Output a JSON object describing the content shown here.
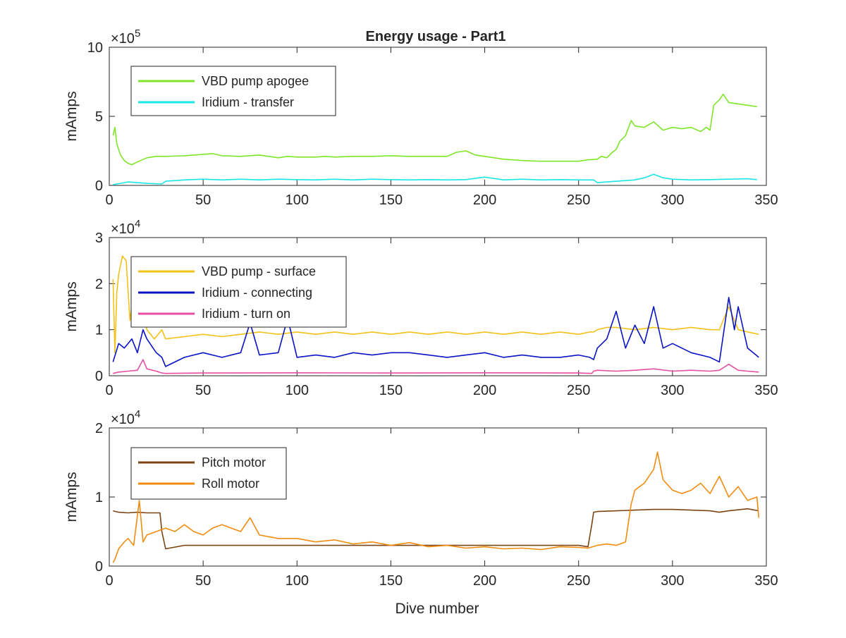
{
  "chart_data": {
    "type": "line",
    "title": "Energy usage - Part1",
    "xlabel": "Dive number",
    "xlim": [
      0,
      350
    ],
    "xticks": [
      0,
      50,
      100,
      150,
      200,
      250,
      300,
      350
    ],
    "panels": [
      {
        "ylabel": "mAmps",
        "ylim": [
          0,
          1000000
        ],
        "yticks": [
          0,
          5,
          10
        ],
        "yexponent": "×10",
        "yexponent_power": "5",
        "legend_placement": "top-left",
        "series": [
          {
            "name": "VBD pump apogee",
            "color": "#7fe52a",
            "x": [
              2,
              3,
              4,
              6,
              8,
              10,
              12,
              15,
              20,
              25,
              30,
              40,
              50,
              55,
              60,
              70,
              80,
              90,
              95,
              100,
              110,
              115,
              120,
              130,
              140,
              150,
              160,
              170,
              180,
              185,
              190,
              195,
              200,
              210,
              220,
              230,
              240,
              250,
              255,
              260,
              262,
              265,
              268,
              270,
              272,
              275,
              278,
              280,
              285,
              290,
              295,
              300,
              305,
              310,
              315,
              318,
              320,
              322,
              325,
              327,
              330,
              335,
              340,
              345
            ],
            "y": [
              360000,
              420000,
              300000,
              220000,
              180000,
              160000,
              150000,
              170000,
              200000,
              210000,
              210000,
              215000,
              225000,
              230000,
              215000,
              210000,
              220000,
              200000,
              210000,
              205000,
              205000,
              210000,
              205000,
              210000,
              210000,
              215000,
              210000,
              210000,
              210000,
              240000,
              250000,
              220000,
              210000,
              190000,
              180000,
              175000,
              175000,
              175000,
              185000,
              190000,
              210000,
              200000,
              240000,
              260000,
              320000,
              360000,
              470000,
              430000,
              420000,
              460000,
              400000,
              420000,
              410000,
              420000,
              390000,
              420000,
              400000,
              580000,
              620000,
              660000,
              600000,
              590000,
              580000,
              570000
            ]
          },
          {
            "name": "Iridium - transfer",
            "color": "#19e6e6",
            "x": [
              2,
              10,
              20,
              28,
              30,
              40,
              50,
              60,
              70,
              80,
              90,
              100,
              110,
              120,
              130,
              140,
              150,
              160,
              170,
              180,
              190,
              200,
              210,
              220,
              230,
              240,
              250,
              258,
              260,
              270,
              280,
              285,
              290,
              295,
              300,
              310,
              320,
              330,
              340,
              345
            ],
            "y": [
              5000,
              25000,
              15000,
              10000,
              30000,
              40000,
              45000,
              40000,
              45000,
              40000,
              45000,
              42000,
              40000,
              45000,
              40000,
              45000,
              42000,
              40000,
              42000,
              40000,
              42000,
              60000,
              40000,
              45000,
              40000,
              42000,
              40000,
              40000,
              20000,
              30000,
              40000,
              55000,
              80000,
              55000,
              45000,
              40000,
              42000,
              45000,
              48000,
              42000
            ]
          }
        ]
      },
      {
        "ylabel": "mAmps",
        "ylim": [
          0,
          30000
        ],
        "yticks": [
          0,
          1,
          2,
          3
        ],
        "yexponent": "×10",
        "yexponent_power": "4",
        "legend_placement": "top-left",
        "series": [
          {
            "name": "VBD pump - surface",
            "color": "#f2c11a",
            "x": [
              2,
              3,
              4,
              5,
              7,
              9,
              11,
              14,
              17,
              20,
              24,
              28,
              30,
              40,
              50,
              60,
              70,
              80,
              90,
              100,
              110,
              120,
              130,
              140,
              150,
              160,
              170,
              180,
              190,
              200,
              210,
              220,
              230,
              240,
              250,
              256,
              258,
              260,
              265,
              270,
              280,
              290,
              300,
              310,
              320,
              325,
              330,
              335,
              340,
              346
            ],
            "y": [
              21000,
              5000,
              18000,
              22000,
              26000,
              25000,
              12000,
              22000,
              15000,
              10000,
              8000,
              10000,
              8000,
              8500,
              9000,
              8500,
              9000,
              9500,
              9000,
              9500,
              9000,
              9500,
              9000,
              9500,
              9000,
              9500,
              9000,
              9500,
              9000,
              9500,
              9000,
              9500,
              9000,
              9500,
              9000,
              9500,
              9500,
              10000,
              10500,
              10500,
              10000,
              10500,
              10000,
              10500,
              10000,
              10000,
              15000,
              10000,
              9500,
              9000
            ]
          },
          {
            "name": "Iridium - connecting",
            "color": "#0a14c4",
            "x": [
              2,
              5,
              8,
              12,
              15,
              18,
              20,
              25,
              28,
              30,
              40,
              50,
              60,
              70,
              75,
              80,
              90,
              95,
              100,
              110,
              120,
              130,
              140,
              150,
              160,
              170,
              180,
              190,
              200,
              210,
              220,
              230,
              240,
              250,
              256,
              258,
              260,
              265,
              270,
              275,
              280,
              285,
              290,
              295,
              300,
              310,
              320,
              325,
              330,
              333,
              335,
              340,
              346
            ],
            "y": [
              3000,
              7000,
              6000,
              8000,
              5000,
              10000,
              8000,
              5000,
              4000,
              2000,
              4000,
              5000,
              4000,
              5000,
              11500,
              4500,
              5000,
              12500,
              4000,
              4500,
              4000,
              5000,
              4500,
              5000,
              5000,
              4500,
              4000,
              4500,
              5000,
              4000,
              4500,
              4000,
              4000,
              4500,
              4000,
              3500,
              6000,
              8000,
              14000,
              6000,
              11000,
              7000,
              15000,
              6000,
              7000,
              5000,
              4000,
              3000,
              17000,
              10000,
              15000,
              6000,
              4000
            ]
          },
          {
            "name": "Iridium - turn on",
            "color": "#e64fa3",
            "x": [
              2,
              5,
              10,
              15,
              18,
              20,
              25,
              28,
              30,
              50,
              100,
              150,
              200,
              250,
              257,
              258,
              260,
              270,
              280,
              290,
              300,
              310,
              320,
              325,
              330,
              335,
              340,
              346
            ],
            "y": [
              500,
              800,
              1000,
              1200,
              3500,
              1500,
              1000,
              600,
              500,
              600,
              650,
              600,
              650,
              600,
              500,
              1000,
              1200,
              1000,
              1200,
              1500,
              1000,
              1200,
              1000,
              1200,
              2500,
              1200,
              1000,
              800
            ]
          }
        ]
      },
      {
        "ylabel": "mAmps",
        "ylim": [
          0,
          20000
        ],
        "yticks": [
          0,
          1,
          2
        ],
        "yexponent": "×10",
        "yexponent_power": "4",
        "legend_placement": "top-left",
        "series": [
          {
            "name": "Pitch motor",
            "color": "#7a4513",
            "x": [
              2,
              5,
              10,
              15,
              20,
              25,
              27,
              28,
              30,
              40,
              50,
              60,
              70,
              80,
              90,
              100,
              110,
              120,
              130,
              140,
              150,
              160,
              170,
              180,
              190,
              200,
              210,
              220,
              230,
              240,
              250,
              255,
              257,
              258,
              260,
              270,
              280,
              290,
              300,
              310,
              320,
              325,
              330,
              340,
              346
            ],
            "y": [
              8000,
              7800,
              7700,
              7800,
              7700,
              7700,
              7700,
              5000,
              2500,
              3000,
              3000,
              3000,
              3000,
              3000,
              3000,
              3000,
              3000,
              3000,
              3000,
              3000,
              3000,
              3000,
              3000,
              3000,
              3000,
              3000,
              3000,
              3000,
              3000,
              3000,
              3000,
              2800,
              6000,
              7800,
              7900,
              8000,
              8100,
              8200,
              8200,
              8100,
              8000,
              7800,
              8000,
              8300,
              8000
            ]
          },
          {
            "name": "Roll motor",
            "color": "#f08c0f",
            "x": [
              2,
              3,
              5,
              8,
              10,
              13,
              16,
              18,
              20,
              25,
              30,
              35,
              40,
              45,
              50,
              55,
              60,
              70,
              75,
              80,
              90,
              100,
              110,
              120,
              130,
              140,
              150,
              160,
              170,
              180,
              190,
              200,
              210,
              220,
              230,
              240,
              250,
              255,
              260,
              265,
              270,
              275,
              278,
              280,
              285,
              290,
              292,
              295,
              300,
              305,
              310,
              315,
              320,
              325,
              330,
              335,
              340,
              345,
              346
            ],
            "y": [
              500,
              1000,
              2500,
              3500,
              4000,
              3000,
              9500,
              3500,
              4500,
              5000,
              5500,
              5000,
              6000,
              5000,
              4500,
              5500,
              6000,
              5000,
              7000,
              4500,
              4000,
              4000,
              3500,
              3800,
              3200,
              3500,
              3000,
              3400,
              2800,
              3000,
              2600,
              2800,
              2500,
              2600,
              2400,
              2800,
              2700,
              2600,
              3000,
              3200,
              3000,
              3500,
              9000,
              11000,
              12000,
              14000,
              16500,
              12500,
              11000,
              10500,
              11000,
              12000,
              10500,
              13000,
              10000,
              11500,
              9500,
              10000,
              7000
            ]
          }
        ]
      }
    ]
  }
}
